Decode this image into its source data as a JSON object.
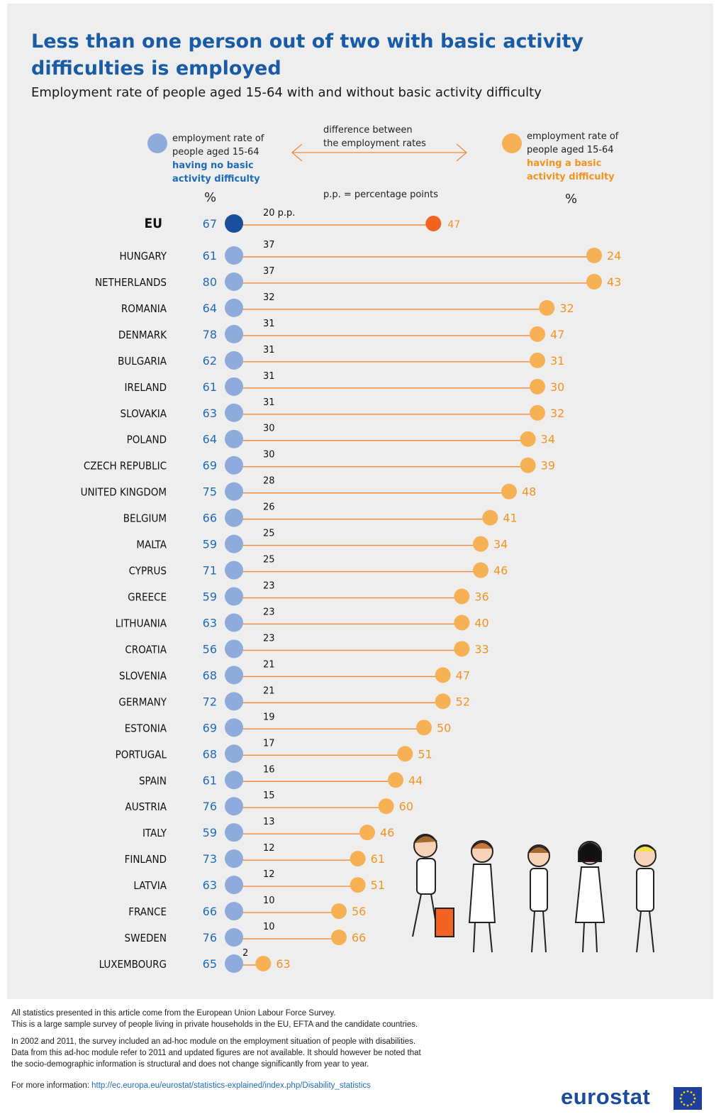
{
  "title": "Less than one person out of two with basic activity difficulties is employed",
  "subtitle": "Employment rate of people aged 15-64 with and without basic activity difficulty",
  "legend": {
    "left_line1": "employment rate of",
    "left_line2": "people aged 15-64",
    "left_line3": "having no basic",
    "left_line4": "activity difficulty",
    "mid_line1": "difference between",
    "mid_line2": "the employment rates",
    "pp_note": "p.p. = percentage points",
    "right_line1": "employment rate of",
    "right_line2": "people aged 15-64",
    "right_line3": "having a basic",
    "right_line4": "activity difficulty",
    "unit_left": "%",
    "unit_right": "%"
  },
  "colors": {
    "blue": "#8fabdc",
    "orange": "#f7b155",
    "eu_blue": "#1b4e9b",
    "eu_orange": "#f26322",
    "line": "#f08a3a",
    "label_blue": "#1f6bb5",
    "label_orange": "#f29421"
  },
  "chart_data": {
    "type": "dumbbell",
    "unit": "%",
    "eu": {
      "country": "EU",
      "without": 67,
      "with": 47,
      "diff": 20,
      "diff_suffix": "p.p."
    },
    "rows": [
      {
        "country": "HUNGARY",
        "without": 61,
        "with": 24,
        "diff": 37
      },
      {
        "country": "NETHERLANDS",
        "without": 80,
        "with": 43,
        "diff": 37
      },
      {
        "country": "ROMANIA",
        "without": 64,
        "with": 32,
        "diff": 32
      },
      {
        "country": "DENMARK",
        "without": 78,
        "with": 47,
        "diff": 31
      },
      {
        "country": "BULGARIA",
        "without": 62,
        "with": 31,
        "diff": 31
      },
      {
        "country": "IRELAND",
        "without": 61,
        "with": 30,
        "diff": 31
      },
      {
        "country": "SLOVAKIA",
        "without": 63,
        "with": 32,
        "diff": 31
      },
      {
        "country": "POLAND",
        "without": 64,
        "with": 34,
        "diff": 30
      },
      {
        "country": "CZECH REPUBLIC",
        "without": 69,
        "with": 39,
        "diff": 30
      },
      {
        "country": "UNITED KINGDOM",
        "without": 75,
        "with": 48,
        "diff": 28
      },
      {
        "country": "BELGIUM",
        "without": 66,
        "with": 41,
        "diff": 26
      },
      {
        "country": "MALTA",
        "without": 59,
        "with": 34,
        "diff": 25
      },
      {
        "country": "CYPRUS",
        "without": 71,
        "with": 46,
        "diff": 25
      },
      {
        "country": "GREECE",
        "without": 59,
        "with": 36,
        "diff": 23
      },
      {
        "country": "LITHUANIA",
        "without": 63,
        "with": 40,
        "diff": 23
      },
      {
        "country": "CROATIA",
        "without": 56,
        "with": 33,
        "diff": 23
      },
      {
        "country": "SLOVENIA",
        "without": 68,
        "with": 47,
        "diff": 21
      },
      {
        "country": "GERMANY",
        "without": 72,
        "with": 52,
        "diff": 21
      },
      {
        "country": "ESTONIA",
        "without": 69,
        "with": 50,
        "diff": 19
      },
      {
        "country": "PORTUGAL",
        "without": 68,
        "with": 51,
        "diff": 17
      },
      {
        "country": "SPAIN",
        "without": 61,
        "with": 44,
        "diff": 16
      },
      {
        "country": "AUSTRIA",
        "without": 76,
        "with": 60,
        "diff": 15
      },
      {
        "country": "ITALY",
        "without": 59,
        "with": 46,
        "diff": 13
      },
      {
        "country": "FINLAND",
        "without": 73,
        "with": 61,
        "diff": 12
      },
      {
        "country": "LATVIA",
        "without": 63,
        "with": 51,
        "diff": 12
      },
      {
        "country": "FRANCE",
        "without": 66,
        "with": 56,
        "diff": 10
      },
      {
        "country": "SWEDEN",
        "without": 76,
        "with": 66,
        "diff": 10
      },
      {
        "country": "LUXEMBOURG",
        "without": 65,
        "with": 63,
        "diff": 2
      }
    ]
  },
  "footer": {
    "note1": "All statistics presented in this article come from the European Union Labour Force Survey.",
    "note2": "This is a large sample survey of people living in private households in the EU, EFTA and the candidate countries.",
    "note3": "In 2002 and 2011, the survey included an ad-hoc module on the employment situation of people with disabilities.",
    "note4": "Data from this ad-hoc module refer to 2011 and updated figures are not available. It should however be noted that",
    "note5": "the socio-demographic information is structural and does not change significantly from year to year.",
    "more_label": "For more information:",
    "more_link": "http://ec.europa.eu/eurostat/statistics-explained/index.php/Disability_statistics",
    "logo": "eurostat"
  }
}
